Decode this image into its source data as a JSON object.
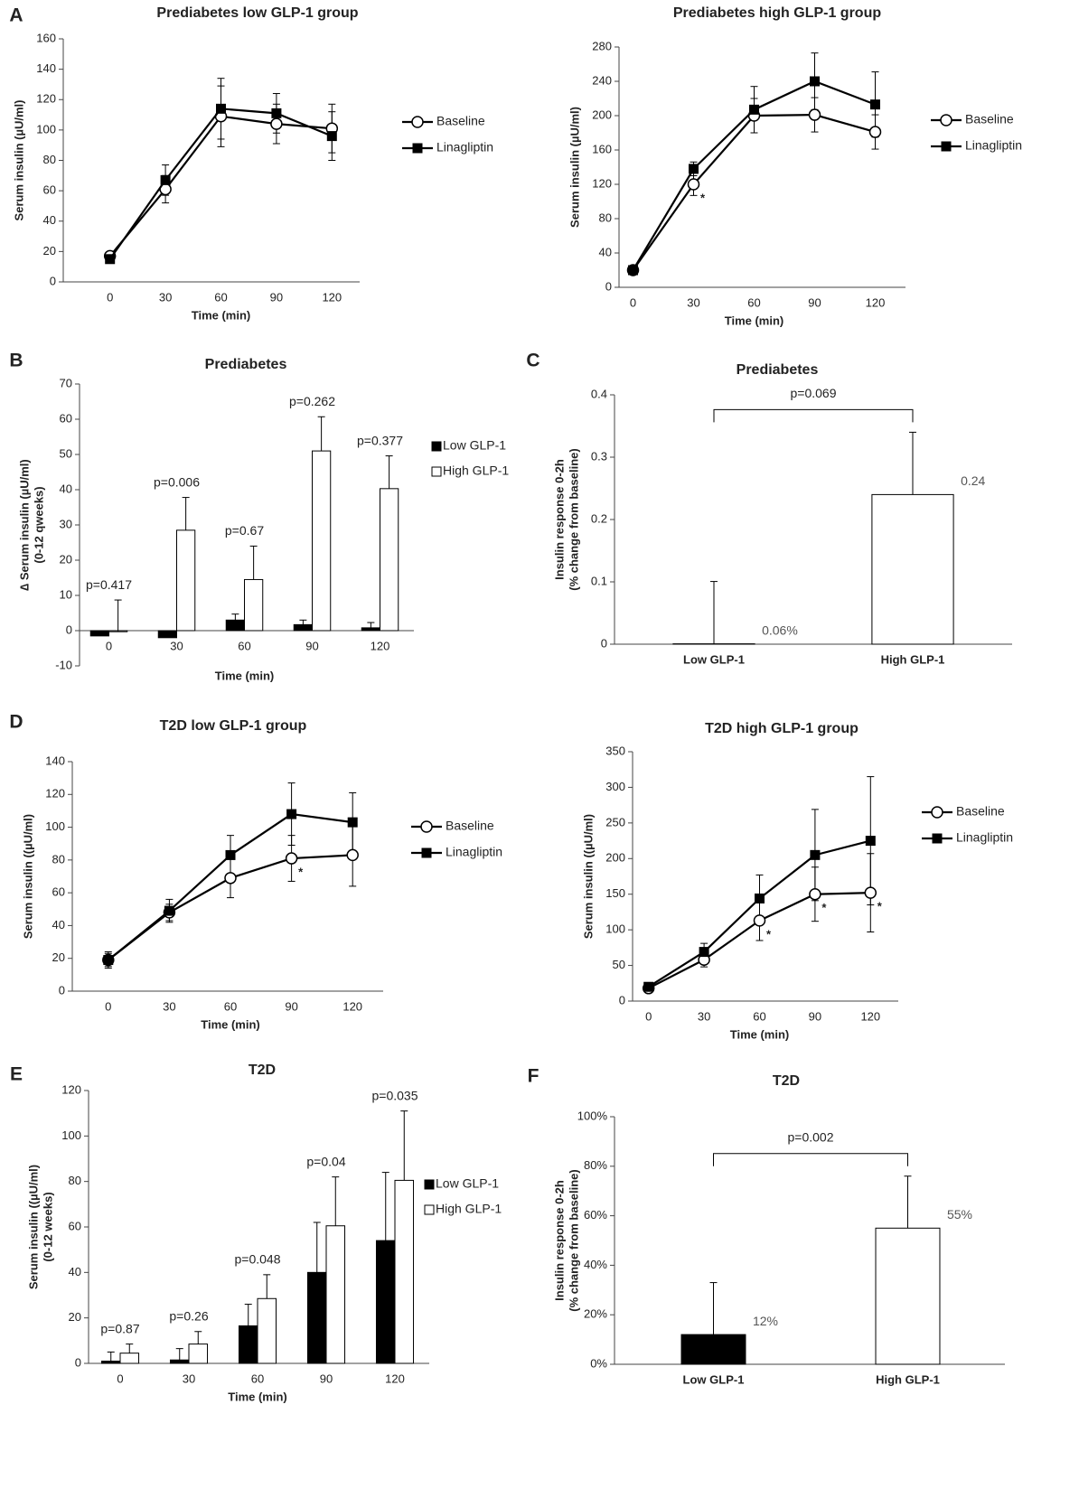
{
  "chart_data": [
    {
      "type": "line",
      "panel": "A",
      "title": "Prediabetes low  GLP-1 group",
      "xlabel": "Time (min)",
      "ylabel": [
        "Serum insulin (µU/ml)"
      ],
      "categories": [
        0,
        30,
        60,
        90,
        120
      ],
      "ylim": [
        0,
        160
      ],
      "yticks": [
        0,
        20,
        40,
        60,
        80,
        100,
        120,
        140,
        160
      ],
      "legend": "right",
      "series": [
        {
          "name": "Baseline",
          "color": "#000000",
          "marker": "open-circle",
          "values": [
            17,
            61,
            109,
            104,
            101
          ],
          "errors": [
            2,
            9,
            20,
            13,
            16
          ]
        },
        {
          "name": "Linagliptin",
          "color": "#000000",
          "marker": "square",
          "values": [
            15,
            67,
            114,
            111,
            96
          ],
          "errors": [
            2,
            10,
            20,
            13,
            16
          ]
        }
      ]
    },
    {
      "type": "line",
      "title": "Prediabetes high  GLP-1 group",
      "xlabel": "Time (min)",
      "ylabel": [
        "Serum insulin (µU/ml)"
      ],
      "categories": [
        0,
        30,
        60,
        90,
        120
      ],
      "ylim": [
        0,
        280
      ],
      "yticks": [
        0,
        40,
        80,
        120,
        160,
        200,
        240,
        280
      ],
      "legend": "right",
      "annotations": [
        {
          "text": "*",
          "x": 30
        }
      ],
      "series": [
        {
          "name": "Baseline",
          "color": "#000000",
          "marker": "open-circle",
          "values": [
            20,
            120,
            200,
            201,
            181
          ],
          "errors": [
            3,
            13,
            20,
            20,
            20
          ]
        },
        {
          "name": "Linagliptin",
          "color": "#000000",
          "marker": "square",
          "values": [
            20,
            138,
            207,
            240,
            213
          ],
          "errors": [
            3,
            8,
            27,
            33,
            38
          ]
        }
      ]
    },
    {
      "type": "bar",
      "panel": "B",
      "title": "Prediabetes",
      "xlabel": "Time (min)",
      "ylabel": [
        "∆ Serum insulin (µU/ml)",
        "(0-12 qweeks)"
      ],
      "categories": [
        0,
        30,
        60,
        90,
        120
      ],
      "ylim": [
        -10,
        70
      ],
      "yticks": [
        -10,
        0,
        10,
        20,
        30,
        40,
        50,
        60,
        70
      ],
      "legend": "right",
      "p_values": [
        "p=0.417",
        "p=0.006",
        "p=0.67",
        "p=0.262",
        "p=0.377"
      ],
      "series": [
        {
          "name": "Low GLP-1",
          "color": "#000000",
          "values": [
            -1.5,
            -2,
            3,
            1.7,
            0.8
          ],
          "errors": [
            0.5,
            0.5,
            1.7,
            1.3,
            1.5
          ]
        },
        {
          "name": "High GLP-1",
          "color": "#ffffff",
          "values": [
            -0.3,
            28.5,
            14.5,
            51,
            40.3
          ],
          "errors": [
            9,
            9.3,
            9.5,
            9.7,
            9.3
          ]
        }
      ]
    },
    {
      "type": "bar",
      "panel": "C",
      "title": "Prediabetes",
      "ylabel": [
        "Insulin response 0-2h",
        "(% change from baseline)"
      ],
      "categories": [
        "Low GLP-1",
        "High GLP-1"
      ],
      "ylim": [
        0,
        0.4
      ],
      "yticks": [
        0,
        0.1,
        0.2,
        0.3,
        0.4
      ],
      "values": [
        0.0006,
        0.24
      ],
      "value_labels": [
        "0.06%",
        "0.24"
      ],
      "errors": [
        0.1,
        0.1
      ],
      "colors": [
        "#000000",
        "#ffffff"
      ],
      "comparison": "p=0.069"
    },
    {
      "type": "line",
      "panel": "D",
      "title": "T2D low GLP-1 group",
      "xlabel": "Time (min)",
      "ylabel": [
        "Serum insulin ((µU/ml)"
      ],
      "categories": [
        0,
        30,
        60,
        90,
        120
      ],
      "ylim": [
        0,
        140
      ],
      "yticks": [
        0,
        20,
        40,
        60,
        80,
        100,
        120,
        140
      ],
      "legend": "right",
      "annotations": [
        {
          "text": "*",
          "x": 90
        }
      ],
      "series": [
        {
          "name": "Baseline",
          "color": "#000000",
          "marker": "open-circle",
          "values": [
            19,
            48,
            69,
            81,
            83
          ],
          "errors": [
            4,
            5,
            12,
            14,
            19
          ]
        },
        {
          "name": "Linagliptin",
          "color": "#000000",
          "marker": "square",
          "values": [
            19,
            49,
            83,
            108,
            103
          ],
          "errors": [
            5,
            7,
            12,
            19,
            18
          ]
        }
      ]
    },
    {
      "type": "line",
      "title": "T2D high  GLP-1 group",
      "xlabel": "Time (min)",
      "ylabel": [
        "Serum insulin ((µU/ml)"
      ],
      "categories": [
        0,
        30,
        60,
        90,
        120
      ],
      "ylim": [
        0,
        350
      ],
      "yticks": [
        0,
        50,
        100,
        150,
        200,
        250,
        300,
        350
      ],
      "legend": "right",
      "annotations": [
        {
          "text": "*",
          "x": 60
        },
        {
          "text": "*",
          "x": 90
        },
        {
          "text": "*",
          "x": 120
        }
      ],
      "series": [
        {
          "name": "Baseline",
          "color": "#000000",
          "marker": "open-circle",
          "values": [
            18,
            58,
            113,
            150,
            152
          ],
          "errors": [
            3,
            10,
            28,
            38,
            55
          ]
        },
        {
          "name": "Linagliptin",
          "color": "#000000",
          "marker": "square",
          "values": [
            20,
            69,
            144,
            205,
            225
          ],
          "errors": [
            3,
            12,
            33,
            64,
            90
          ]
        }
      ]
    },
    {
      "type": "bar",
      "panel": "E",
      "title": "T2D",
      "xlabel": "Time (min)",
      "ylabel": [
        "Serum insulin ((µU/ml)",
        "(0-12 weeks)"
      ],
      "categories": [
        0,
        30,
        60,
        90,
        120
      ],
      "ylim": [
        0,
        120
      ],
      "yticks": [
        0,
        20,
        40,
        60,
        80,
        100,
        120
      ],
      "legend": "right",
      "p_values": [
        "p=0.87",
        "p=0.26",
        "p=0.048",
        "p=0.04",
        "p=0.035"
      ],
      "series": [
        {
          "name": "Low GLP-1",
          "color": "#000000",
          "values": [
            1,
            1.5,
            16.5,
            40,
            54
          ],
          "errors": [
            4,
            5,
            9.5,
            22,
            30
          ]
        },
        {
          "name": "High GLP-1",
          "color": "#ffffff",
          "values": [
            4.5,
            8.5,
            28.5,
            60.5,
            80.5
          ],
          "errors": [
            4,
            5.5,
            10.5,
            21.5,
            30.5
          ]
        }
      ]
    },
    {
      "type": "bar",
      "panel": "F",
      "title": "T2D",
      "ylabel": [
        "Insulin response 0-2h",
        "(% change from baseline)"
      ],
      "categories": [
        "Low GLP-1",
        "High GLP-1"
      ],
      "ylim": [
        0,
        100
      ],
      "yticks": [
        {
          "value": 0,
          "label": "0%"
        },
        {
          "value": 20,
          "label": "20%"
        },
        {
          "value": 40,
          "label": "40%"
        },
        {
          "value": 60,
          "label": "60%"
        },
        {
          "value": 80,
          "label": "80%"
        },
        {
          "value": 100,
          "label": "100%"
        }
      ],
      "values": [
        12,
        55
      ],
      "value_labels": [
        "12%",
        "55%"
      ],
      "errors": [
        21,
        21
      ],
      "colors": [
        "#000000",
        "#ffffff"
      ],
      "comparison": "p=0.002"
    }
  ]
}
